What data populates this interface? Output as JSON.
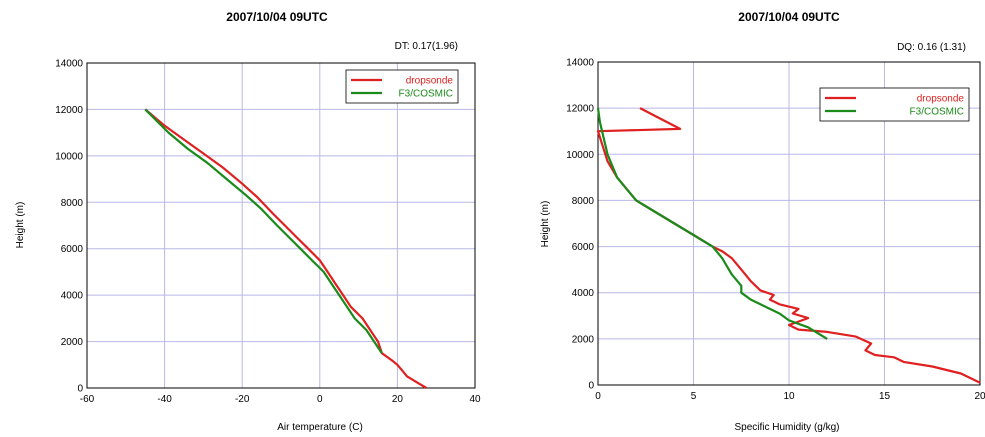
{
  "chart_data": [
    {
      "type": "line",
      "title": "2007/10/04 09UTC",
      "annotation": "DT:  0.17(1.96)",
      "xlabel": "Air temperature (C)",
      "ylabel": "Height (m)",
      "xlim": [
        -60,
        40
      ],
      "ylim": [
        0,
        14000
      ],
      "xticks": [
        -60,
        -40,
        -20,
        0,
        20,
        40
      ],
      "yticks": [
        0,
        2000,
        4000,
        6000,
        8000,
        10000,
        12000,
        14000
      ],
      "grid": true,
      "legend_position": "top-right",
      "series": [
        {
          "name": "dropsonde",
          "color": "#e02020",
          "x": [
            27.5,
            25.5,
            22.5,
            21,
            20,
            18.5,
            16,
            15,
            13,
            11,
            8,
            6,
            4,
            2,
            0,
            -3,
            -6,
            -9,
            -12,
            -16,
            -20,
            -25,
            -30,
            -35,
            -40,
            -45
          ],
          "y": [
            0,
            200,
            500,
            800,
            1000,
            1200,
            1500,
            2000,
            2500,
            3000,
            3500,
            4000,
            4500,
            5000,
            5500,
            6000,
            6500,
            7000,
            7500,
            8200,
            8800,
            9500,
            10100,
            10700,
            11300,
            12000
          ]
        },
        {
          "name": "F3/COSMIC",
          "color": "#1a8a1a",
          "x": [
            16,
            14,
            12,
            9,
            7,
            5,
            3,
            1,
            -2,
            -5,
            -8,
            -11,
            -15,
            -19,
            -24,
            -29,
            -34,
            -39,
            -45
          ],
          "y": [
            1500,
            2000,
            2500,
            3000,
            3500,
            4000,
            4500,
            5000,
            5500,
            6000,
            6500,
            7000,
            7700,
            8300,
            9000,
            9700,
            10300,
            11000,
            12000
          ]
        }
      ]
    },
    {
      "type": "line",
      "title": "2007/10/04  09UTC",
      "annotation": "DQ:  0.16 (1.31)",
      "xlabel": "Specific Humidity (g/kg)",
      "ylabel": "Height (m)",
      "xlim": [
        0,
        20
      ],
      "ylim": [
        0,
        14000
      ],
      "xticks": [
        0,
        5,
        10,
        15,
        20
      ],
      "yticks": [
        0,
        2000,
        4000,
        6000,
        8000,
        10000,
        12000,
        14000
      ],
      "grid": true,
      "legend_position": "top-right",
      "series": [
        {
          "name": "dropsonde",
          "color": "#e02020",
          "x": [
            20,
            19,
            17.5,
            16,
            15.5,
            14.5,
            14,
            14.3,
            13.5,
            12,
            10.5,
            10,
            11,
            10.2,
            10.5,
            9.5,
            9,
            9.2,
            8.5,
            8,
            7.5,
            7,
            6.5,
            6,
            5,
            4,
            3,
            2,
            1.5,
            1,
            0.5,
            0,
            4.3,
            2.2
          ],
          "y": [
            100,
            500,
            800,
            1000,
            1200,
            1300,
            1500,
            1800,
            2100,
            2300,
            2400,
            2600,
            2900,
            3100,
            3300,
            3500,
            3700,
            3900,
            4100,
            4500,
            5000,
            5500,
            5800,
            6000,
            6500,
            7000,
            7500,
            8000,
            8500,
            9000,
            9700,
            11000,
            11100,
            12000
          ]
        },
        {
          "name": "F3/COSMIC",
          "color": "#1a8a1a",
          "x": [
            12,
            11,
            10,
            9.5,
            9,
            8.5,
            8,
            7.5,
            7.5,
            7,
            6.5,
            6,
            5,
            4,
            3,
            2,
            1.5,
            1,
            0.5,
            0.1,
            0
          ],
          "y": [
            2000,
            2500,
            2800,
            3100,
            3300,
            3500,
            3700,
            4000,
            4300,
            4800,
            5500,
            6000,
            6500,
            7000,
            7500,
            8000,
            8500,
            9000,
            10000,
            11400,
            12000
          ]
        }
      ]
    }
  ]
}
